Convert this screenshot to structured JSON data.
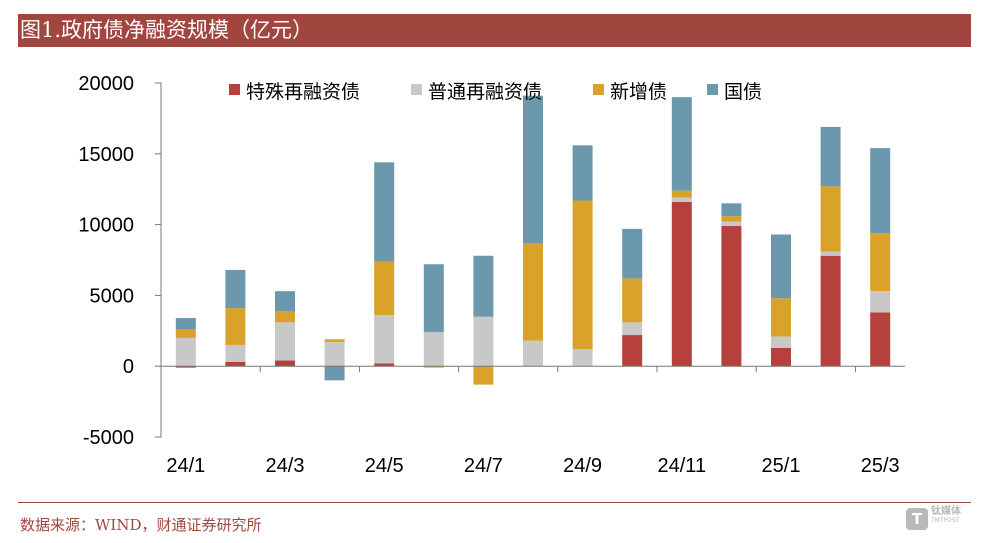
{
  "header": {
    "title": "图1.政府债净融资规模（亿元）"
  },
  "footer": {
    "source": "数据来源：WIND，财通证券研究所"
  },
  "watermark": {
    "icon": "T",
    "main": "钛媒体",
    "sub": "TMTPOST"
  },
  "colors": {
    "title_bg": "#a0463f",
    "special_refinancing": "#b5403c",
    "general_refinancing": "#c8c8c8",
    "new_issue": "#d9a22a",
    "treasury": "#6b98ad"
  },
  "chart_data": {
    "type": "bar",
    "stacked": true,
    "categories": [
      "24/1",
      "24/2",
      "24/3",
      "24/4",
      "24/5",
      "24/6",
      "24/7",
      "24/8",
      "24/9",
      "24/10",
      "24/11",
      "24/12",
      "25/1",
      "25/2",
      "25/3"
    ],
    "x_tick_labels": [
      "24/1",
      "24/3",
      "24/5",
      "24/7",
      "24/9",
      "24/11",
      "25/1",
      "25/3"
    ],
    "y_ticks": [
      20000,
      15000,
      10000,
      5000,
      0,
      -5000
    ],
    "ylim": [
      -5000,
      20000
    ],
    "legend_position": "top",
    "series": [
      {
        "name": "特殊再融资债",
        "color": "#b5403c",
        "values": [
          -100,
          300,
          400,
          0,
          200,
          0,
          0,
          0,
          0,
          2200,
          11600,
          9900,
          1300,
          7800,
          3800
        ]
      },
      {
        "name": "普通再融资债",
        "color": "#c8c8c8",
        "values": [
          2000,
          1200,
          2700,
          1700,
          3400,
          2400,
          3500,
          1800,
          1200,
          900,
          300,
          300,
          800,
          300,
          1500
        ]
      },
      {
        "name": "新增债",
        "color": "#d9a22a",
        "values": [
          600,
          2600,
          800,
          200,
          3800,
          -100,
          -1300,
          6900,
          10500,
          3100,
          500,
          400,
          2700,
          4600,
          4100
        ]
      },
      {
        "name": "国债",
        "color": "#6b98ad",
        "values": [
          800,
          2700,
          1400,
          -1000,
          7000,
          4800,
          4300,
          10400,
          3900,
          3500,
          6600,
          900,
          4500,
          4200,
          6000
        ]
      }
    ]
  }
}
